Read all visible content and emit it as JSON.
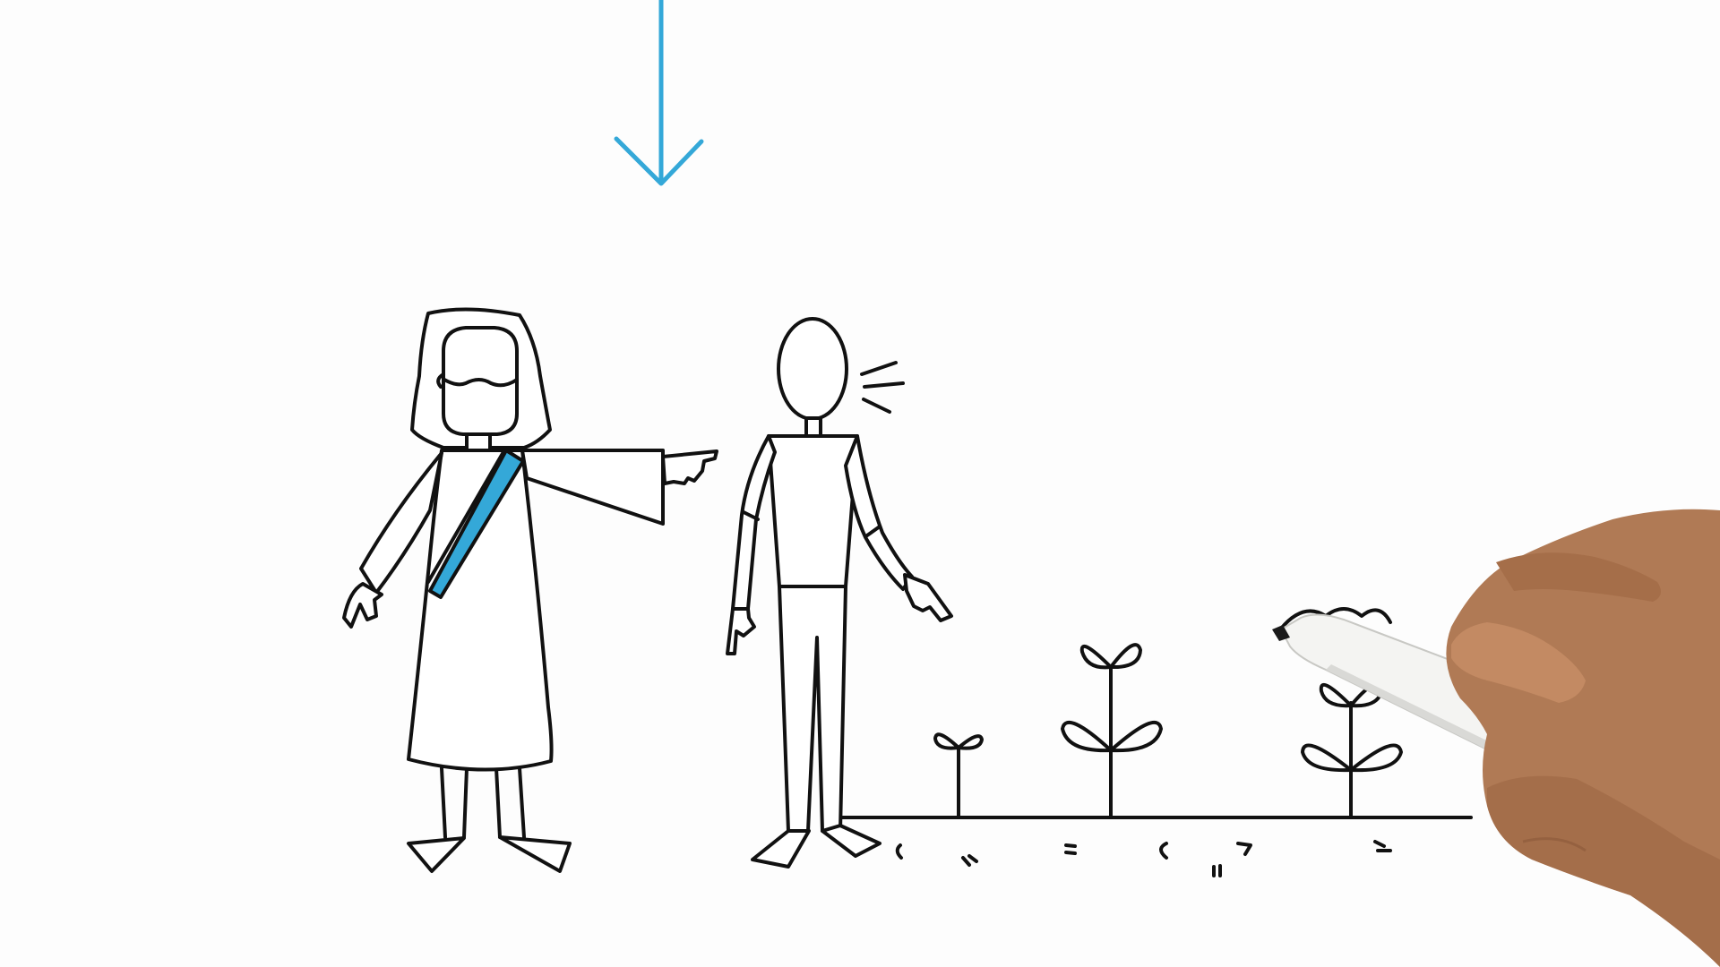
{
  "scene": {
    "style": "whiteboard-animation",
    "background_color": "#fdfdfd",
    "ink_color": "#111111",
    "accent_color": "#34a8d8",
    "skin_color": "#b07a55",
    "marker_color": "#f4f4f2"
  },
  "elements": {
    "arrow": "down-arrow-icon",
    "robed_figure": "robed-figure-pointing",
    "stick_figure": "stick-figure-speaking",
    "sprouts": "plant-sprouts",
    "hand": "hand-holding-marker"
  }
}
